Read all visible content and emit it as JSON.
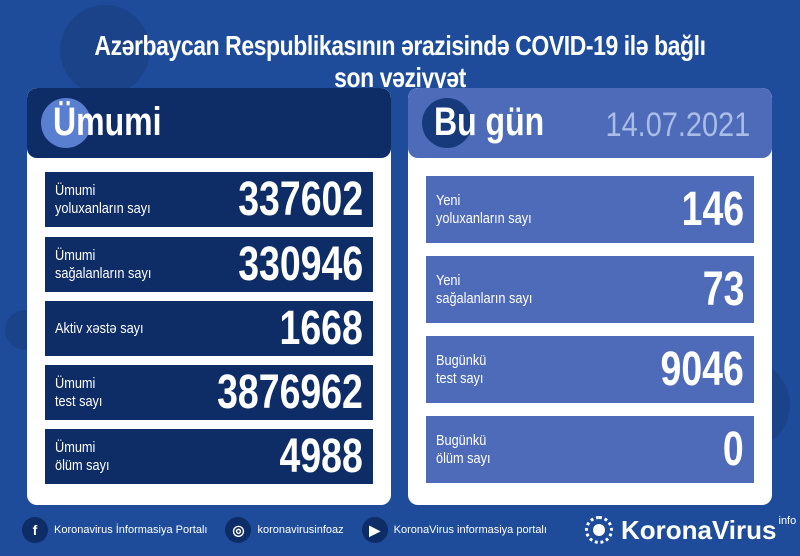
{
  "title": "Azərbaycan Respublikasının ərazisində COVID-19 ilə bağlı son vəziyyət",
  "colors": {
    "background": "#1e4c9a",
    "navy": "#0e2c66",
    "light_blue": "#4d6bb9",
    "date": "#a9bde6"
  },
  "left": {
    "heading": "Ümumi",
    "rows": [
      {
        "l1": "Ümumi",
        "l2": "yoluxanların sayı",
        "value": "337602"
      },
      {
        "l1": "Ümumi",
        "l2": "sağalanların sayı",
        "value": "330946"
      },
      {
        "l1": "Aktiv xəstə sayı",
        "l2": "",
        "value": "1668"
      },
      {
        "l1": "Ümumi",
        "l2": "test sayı",
        "value": "3876962"
      },
      {
        "l1": "Ümumi",
        "l2": "ölüm sayı",
        "value": "4988"
      }
    ]
  },
  "right": {
    "heading": "Bu gün",
    "date": "14.07.2021",
    "rows": [
      {
        "l1": "Yeni",
        "l2": "yoluxanların sayı",
        "value": "146"
      },
      {
        "l1": "Yeni",
        "l2": "sağalanların sayı",
        "value": "73"
      },
      {
        "l1": "Bugünkü",
        "l2": "test sayı",
        "value": "9046"
      },
      {
        "l1": "Bugünkü",
        "l2": "ölüm sayı",
        "value": "0"
      }
    ]
  },
  "footer": {
    "facebook": "Koronavirus İnformasiya Portalı",
    "instagram": "koronavirusinfoaz",
    "youtube": "KoronaVirus informasiya portalı",
    "logo": "KoronaVirus",
    "logo_sup": "info"
  }
}
